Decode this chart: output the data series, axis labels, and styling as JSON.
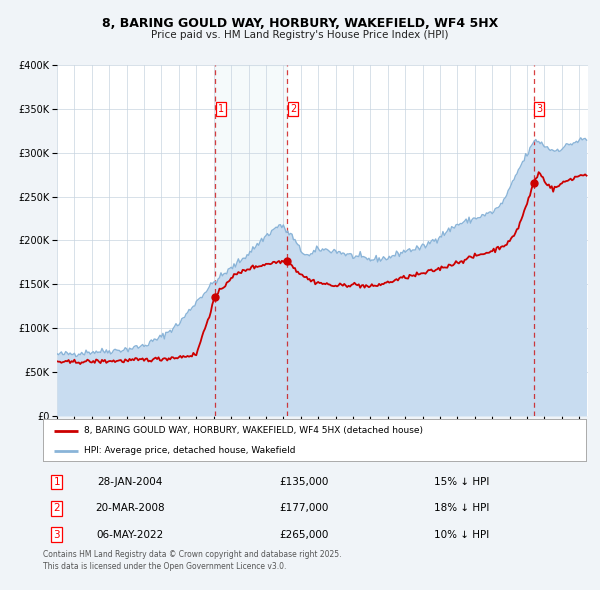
{
  "title": "8, BARING GOULD WAY, HORBURY, WAKEFIELD, WF4 5HX",
  "subtitle": "Price paid vs. HM Land Registry's House Price Index (HPI)",
  "hpi_label": "HPI: Average price, detached house, Wakefield",
  "property_label": "8, BARING GOULD WAY, HORBURY, WAKEFIELD, WF4 5HX (detached house)",
  "hpi_color": "#8ab4d8",
  "hpi_fill_color": "#c8dcf0",
  "property_color": "#cc0000",
  "background_color": "#f0f4f8",
  "transactions": [
    {
      "id": 1,
      "date": "28-JAN-2004",
      "date_num": 2004.08,
      "price": 135000,
      "pct": "15% ↓ HPI"
    },
    {
      "id": 2,
      "date": "20-MAR-2008",
      "date_num": 2008.22,
      "price": 177000,
      "pct": "18% ↓ HPI"
    },
    {
      "id": 3,
      "date": "06-MAY-2022",
      "date_num": 2022.37,
      "price": 265000,
      "pct": "10% ↓ HPI"
    }
  ],
  "footer": "Contains HM Land Registry data © Crown copyright and database right 2025.\nThis data is licensed under the Open Government Licence v3.0.",
  "ylim": [
    0,
    400000
  ],
  "yticks": [
    0,
    50000,
    100000,
    150000,
    200000,
    250000,
    300000,
    350000,
    400000
  ],
  "xlim_start": 1995.0,
  "xlim_end": 2025.5
}
